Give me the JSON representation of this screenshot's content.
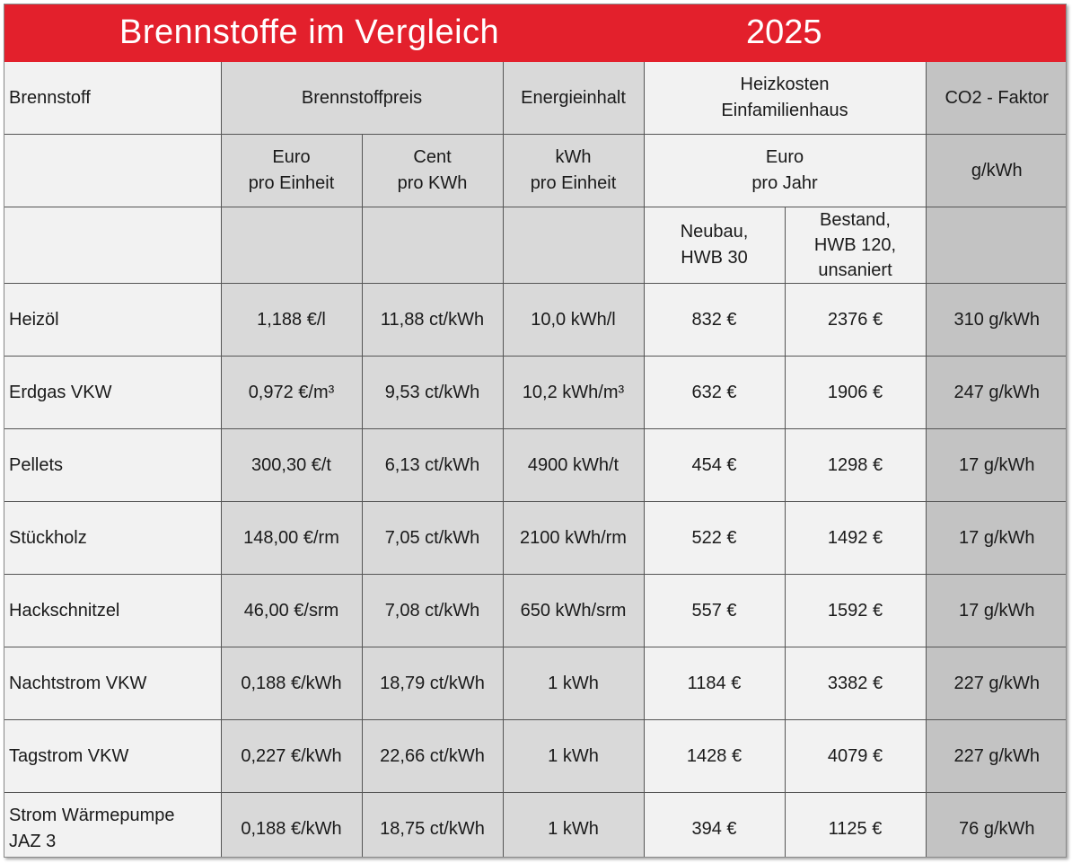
{
  "header": {
    "title": "Brennstoffe im Vergleich",
    "year": "2025"
  },
  "colors": {
    "title_bar": "#e3202c",
    "shaded_column": "#d9d9d9",
    "light_column": "#f2f2f2",
    "co2_column": "#c3c3c3"
  },
  "table": {
    "headers": {
      "fuel": "Brennstoff",
      "fuel_price": "Brennstoffpreis",
      "energy_content": "Energieinhalt",
      "heating_cost_line1": "Heizkosten",
      "heating_cost_line2": "Einfamilienhaus",
      "co2_factor": "CO2 - Faktor"
    },
    "units": {
      "euro_line1": "Euro",
      "euro_line2": "pro Einheit",
      "cent_line1": "Cent",
      "cent_line2": "pro KWh",
      "kwh_line1": "kWh",
      "kwh_line2": "pro Einheit",
      "year_line1": "Euro",
      "year_line2": "pro Jahr",
      "co2_unit": "g/kWh"
    },
    "subheaders": {
      "new_line1": "Neubau,",
      "new_line2": "HWB 30",
      "existing_line1": "Bestand,",
      "existing_line2": "HWB 120,",
      "existing_line3": "unsaniert"
    },
    "rows": [
      {
        "fuel": "Heizöl",
        "fuel_line2": "",
        "price_euro": "1,188 €/l",
        "price_cent": "11,88 ct/kWh",
        "energy": "10,0 kWh/l",
        "cost_new": "832 €",
        "cost_existing": "2376 €",
        "co2": "310 g/kWh"
      },
      {
        "fuel": "Erdgas VKW",
        "fuel_line2": "",
        "price_euro": "0,972 €/m³",
        "price_cent": "9,53 ct/kWh",
        "energy": "10,2 kWh/m³",
        "cost_new": "632 €",
        "cost_existing": "1906 €",
        "co2": "247 g/kWh"
      },
      {
        "fuel": "Pellets",
        "fuel_line2": "",
        "price_euro": "300,30 €/t",
        "price_cent": "6,13 ct/kWh",
        "energy": "4900 kWh/t",
        "cost_new": "454 €",
        "cost_existing": "1298 €",
        "co2": "17 g/kWh"
      },
      {
        "fuel": "Stückholz",
        "fuel_line2": "",
        "price_euro": "148,00 €/rm",
        "price_cent": "7,05 ct/kWh",
        "energy": "2100 kWh/rm",
        "cost_new": "522 €",
        "cost_existing": "1492 €",
        "co2": "17 g/kWh"
      },
      {
        "fuel": "Hackschnitzel",
        "fuel_line2": "",
        "price_euro": "46,00 €/srm",
        "price_cent": "7,08 ct/kWh",
        "energy": "650 kWh/srm",
        "cost_new": "557 €",
        "cost_existing": "1592 €",
        "co2": "17 g/kWh"
      },
      {
        "fuel": "Nachtstrom VKW",
        "fuel_line2": "",
        "price_euro": "0,188 €/kWh",
        "price_cent": "18,79 ct/kWh",
        "energy": "1 kWh",
        "cost_new": "1184 €",
        "cost_existing": "3382 €",
        "co2": "227 g/kWh"
      },
      {
        "fuel": "Tagstrom VKW",
        "fuel_line2": "",
        "price_euro": "0,227 €/kWh",
        "price_cent": "22,66 ct/kWh",
        "energy": "1 kWh",
        "cost_new": "1428 €",
        "cost_existing": "4079 €",
        "co2": "227 g/kWh"
      },
      {
        "fuel": "Strom Wärmepumpe",
        "fuel_line2": "JAZ 3",
        "price_euro": "0,188 €/kWh",
        "price_cent": "18,75 ct/kWh",
        "energy": "1 kWh",
        "cost_new": "394 €",
        "cost_existing": "1125 €",
        "co2": "76 g/kWh"
      }
    ]
  }
}
